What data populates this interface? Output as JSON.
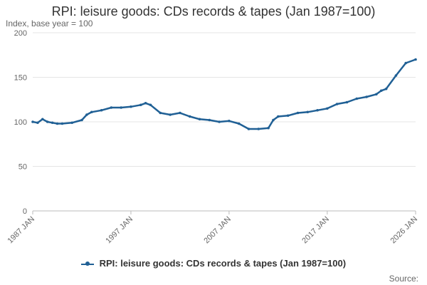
{
  "chart_data": {
    "type": "line",
    "title": "RPI: leisure goods: CDs records & tapes (Jan 1987=100)",
    "ylabel": "Index, base year = 100",
    "xlabel": "",
    "ylim": [
      0,
      200
    ],
    "yticks": [
      "0",
      "50",
      "100",
      "150",
      "200"
    ],
    "xlim": [
      1987,
      2026
    ],
    "xticks": [
      {
        "label": "1987 JAN",
        "x": 1987
      },
      {
        "label": "1997 JAN",
        "x": 1997
      },
      {
        "label": "2007 JAN",
        "x": 2007
      },
      {
        "label": "2017 JAN",
        "x": 2017
      },
      {
        "label": "2026 JAN",
        "x": 2026
      }
    ],
    "series": [
      {
        "name": "RPI: leisure goods: CDs records & tapes (Jan 1987=100)",
        "color": "#206095",
        "x": [
          1987,
          1987.5,
          1988,
          1988.5,
          1989,
          1989.5,
          1990,
          1991,
          1992,
          1992.5,
          1993,
          1994,
          1995,
          1996,
          1997,
          1998,
          1998.5,
          1999,
          2000,
          2001,
          2002,
          2003,
          2004,
          2005,
          2006,
          2007,
          2008,
          2009,
          2010,
          2011,
          2011.5,
          2012,
          2013,
          2014,
          2015,
          2016,
          2017,
          2018,
          2019,
          2020,
          2021,
          2022,
          2022.5,
          2023,
          2024,
          2025,
          2026
        ],
        "values": [
          100,
          99,
          103,
          100,
          99,
          98,
          98,
          99,
          102,
          108,
          111,
          113,
          116,
          116,
          117,
          119,
          121,
          119,
          110,
          108,
          110,
          106,
          103,
          102,
          100,
          101,
          98,
          92,
          92,
          93,
          102,
          106,
          107,
          110,
          111,
          113,
          115,
          120,
          122,
          126,
          128,
          131,
          135,
          137,
          152,
          166,
          170
        ]
      }
    ]
  },
  "legend": {
    "label": "RPI: leisure goods: CDs records & tapes (Jan 1987=100)"
  },
  "footer": {
    "source": "Source:"
  }
}
